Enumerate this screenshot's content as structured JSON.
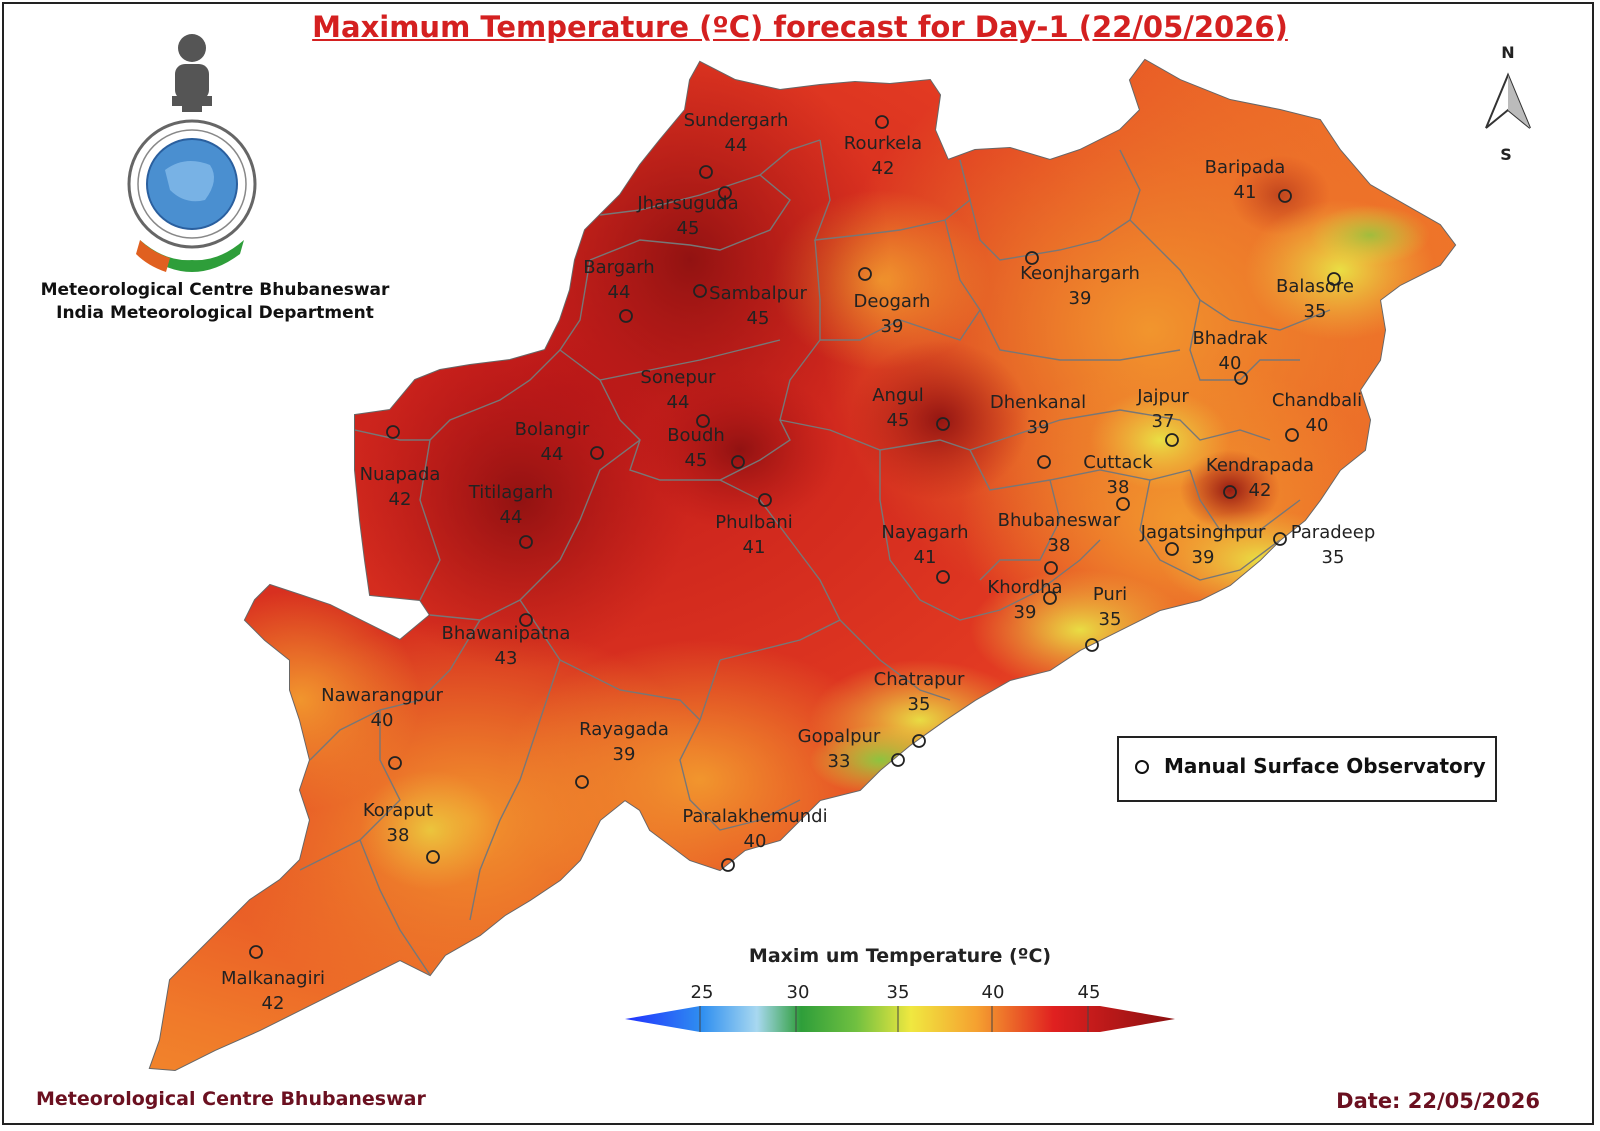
{
  "title": "Maximum Temperature (ºC) forecast for Day-1 (22/05/2026)",
  "org_line1": "Meteorological Centre Bhubaneswar",
  "org_line2": "India Meteorological Department",
  "footer_left": "Meteorological Centre Bhubaneswar",
  "footer_right": "Date: 22/05/2026",
  "legend_label": "Manual Surface Observatory",
  "colorbar": {
    "title": "Maxim um Temperature (ºC)",
    "ticks": [
      "25",
      "30",
      "35",
      "40",
      "45"
    ],
    "colors": [
      "#1a1aff",
      "#2f8ff0",
      "#38b040",
      "#e8e840",
      "#f5a030",
      "#e02020",
      "#8b1010"
    ]
  },
  "north": {
    "n": "N",
    "s": "S"
  },
  "stations": [
    {
      "name": "Sundergarh",
      "value": "44"
    },
    {
      "name": "Rourkela",
      "value": "42"
    },
    {
      "name": "Jharsuguda",
      "value": "45"
    },
    {
      "name": "Baripada",
      "value": "41"
    },
    {
      "name": "Bargarh",
      "value": "44"
    },
    {
      "name": "Sambalpur",
      "value": "45"
    },
    {
      "name": "Deogarh",
      "value": "39"
    },
    {
      "name": "Keonjhargarh",
      "value": "39"
    },
    {
      "name": "Balasore",
      "value": "35"
    },
    {
      "name": "Bhadrak",
      "value": "40"
    },
    {
      "name": "Sonepur",
      "value": "44"
    },
    {
      "name": "Angul",
      "value": "45"
    },
    {
      "name": "Dhenkanal",
      "value": "39"
    },
    {
      "name": "Jajpur",
      "value": "37"
    },
    {
      "name": "Chandbali",
      "value": "40"
    },
    {
      "name": "Bolangir",
      "value": "44"
    },
    {
      "name": "Boudh",
      "value": "45"
    },
    {
      "name": "Cuttack",
      "value": "38"
    },
    {
      "name": "Kendrapada",
      "value": "42"
    },
    {
      "name": "Nuapada",
      "value": "42"
    },
    {
      "name": "Titilagarh",
      "value": "44"
    },
    {
      "name": "Phulbani",
      "value": "41"
    },
    {
      "name": "Nayagarh",
      "value": "41"
    },
    {
      "name": "Bhubaneswar",
      "value": "38"
    },
    {
      "name": "Jagatsinghpur",
      "value": "39"
    },
    {
      "name": "Paradeep",
      "value": "35"
    },
    {
      "name": "Khordha",
      "value": "39"
    },
    {
      "name": "Puri",
      "value": "35"
    },
    {
      "name": "Bhawanipatna",
      "value": "43"
    },
    {
      "name": "Chatrapur",
      "value": "35"
    },
    {
      "name": "Nawarangpur",
      "value": "40"
    },
    {
      "name": "Rayagada",
      "value": "39"
    },
    {
      "name": "Gopalpur",
      "value": "33"
    },
    {
      "name": "Koraput",
      "value": "38"
    },
    {
      "name": "Paralakhemundi",
      "value": "40"
    },
    {
      "name": "Malkanagiri",
      "value": "42"
    }
  ]
}
